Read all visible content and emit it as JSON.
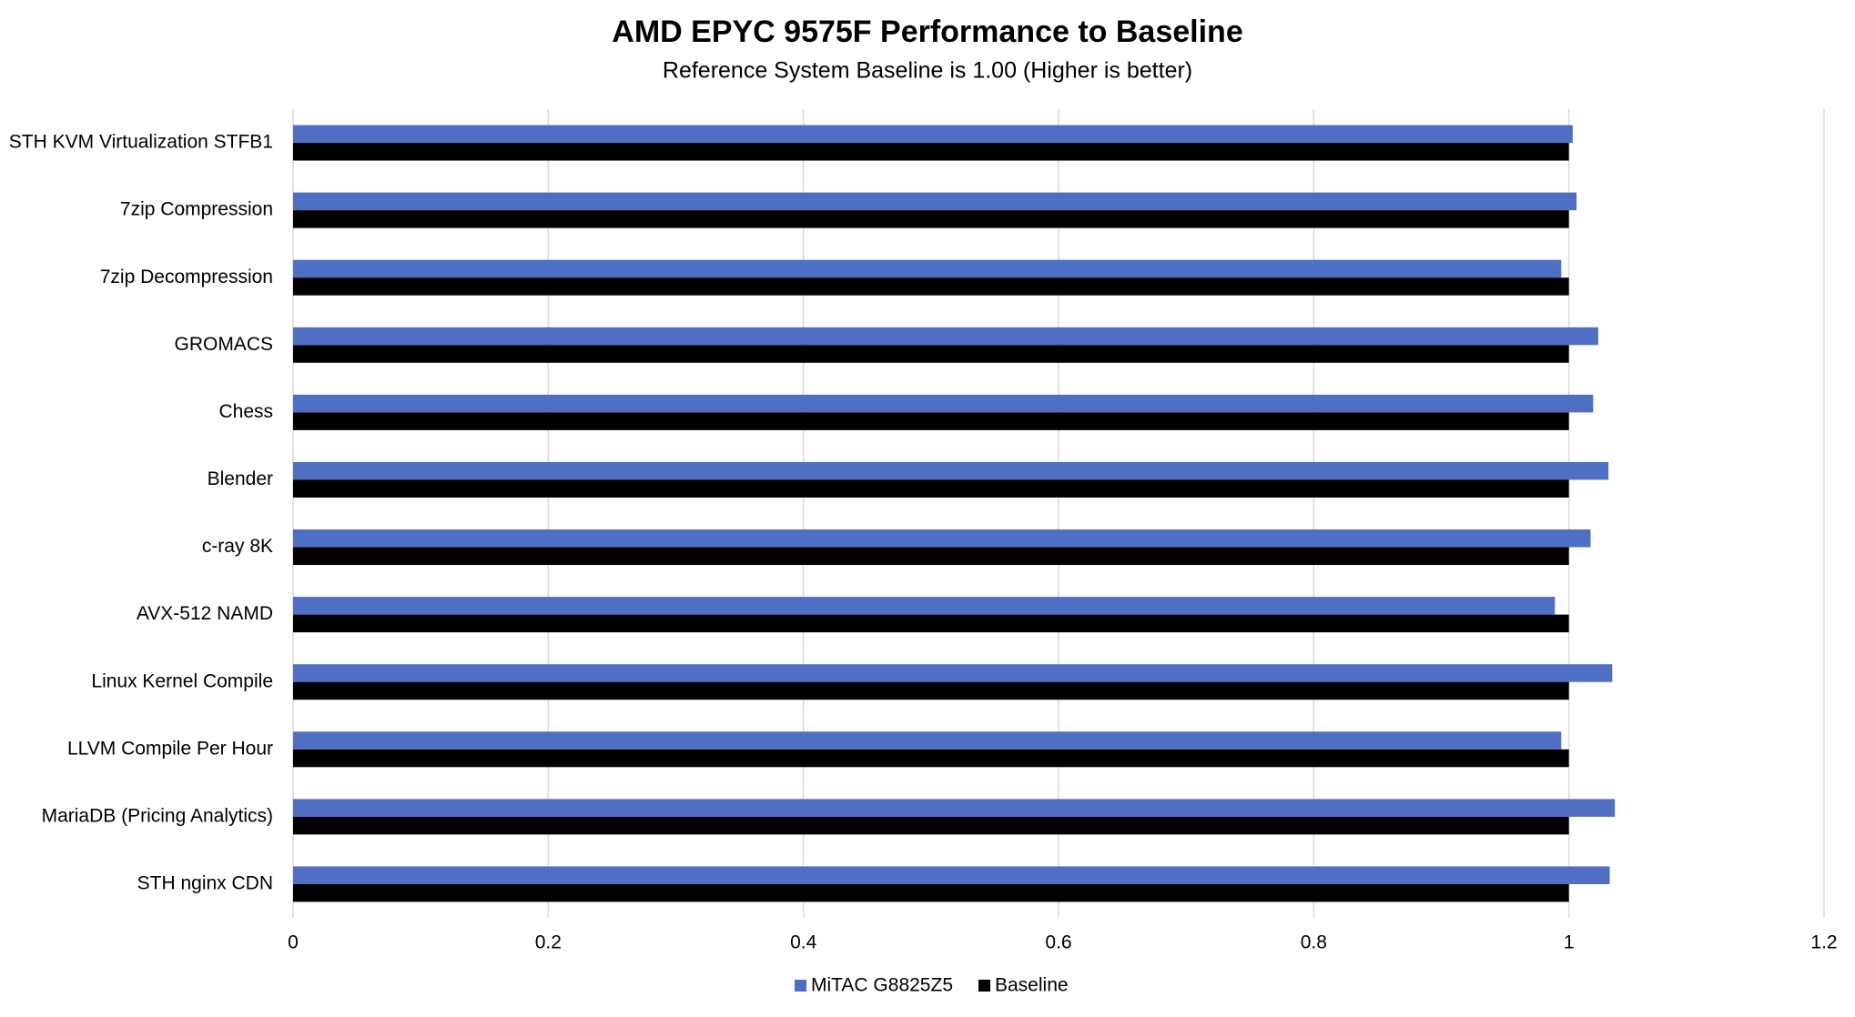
{
  "chart_data": {
    "type": "hbar",
    "title": "AMD EPYC 9575F Performance to Baseline",
    "subtitle": "Reference System Baseline is 1.00 (Higher is better)",
    "categories": [
      "STH KVM Virtualization STFB1",
      "7zip Compression",
      "7zip Decompression",
      "GROMACS",
      "Chess",
      "Blender",
      "c-ray 8K",
      "AVX-512 NAMD",
      "Linux Kernel Compile",
      "LLVM Compile Per Hour",
      "MariaDB (Pricing Analytics)",
      "STH nginx CDN"
    ],
    "series": [
      {
        "name": "MiTAC G8825Z5",
        "color": "#4f6fc5",
        "values": [
          1.003,
          1.006,
          0.994,
          1.023,
          1.019,
          1.031,
          1.017,
          0.989,
          1.034,
          0.994,
          1.036,
          1.032
        ]
      },
      {
        "name": "Baseline",
        "color": "#000000",
        "values": [
          1,
          1,
          1,
          1,
          1,
          1,
          1,
          1,
          1,
          1,
          1,
          1
        ]
      }
    ],
    "xlim": [
      0,
      1.2
    ],
    "xticks": [
      0,
      0.2,
      0.4,
      0.6,
      0.8,
      1,
      1.2
    ],
    "grid": true,
    "legend": "bottom"
  }
}
